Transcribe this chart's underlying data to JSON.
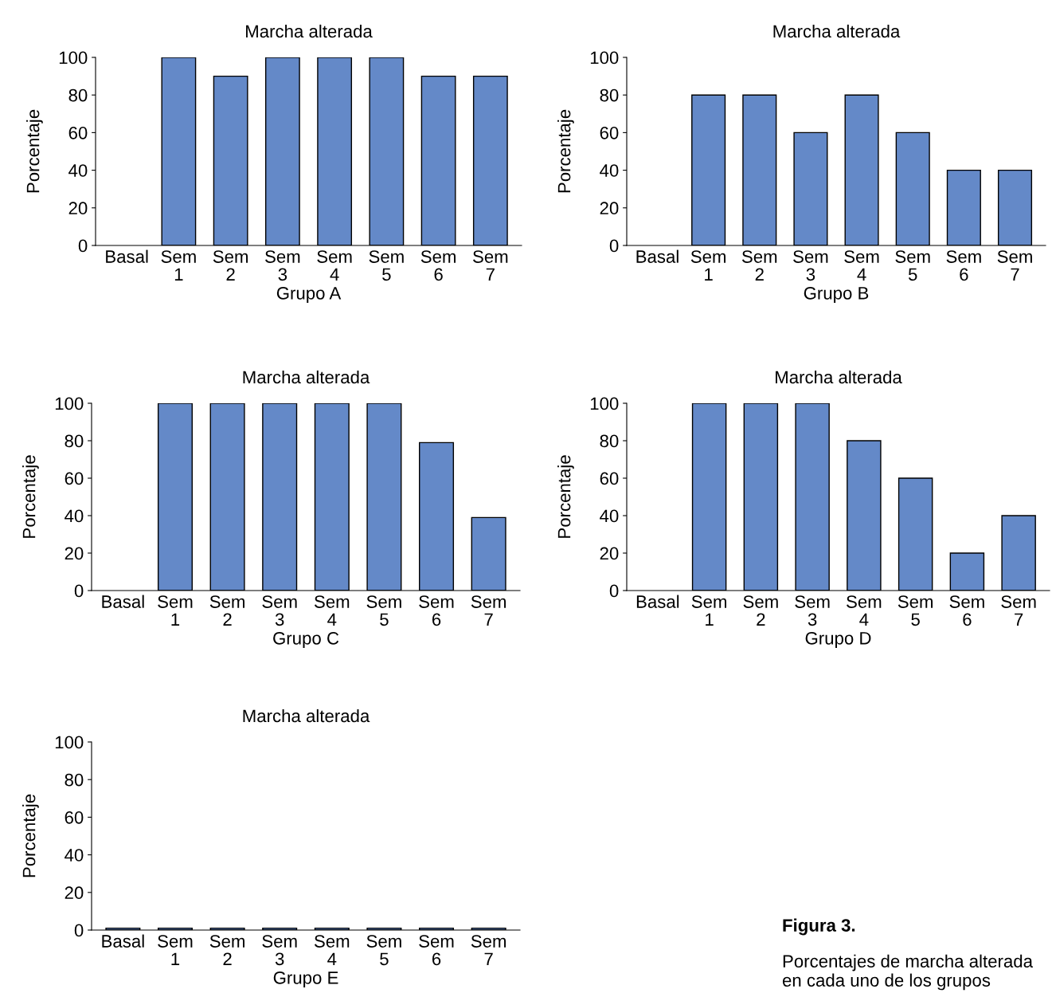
{
  "chart_data": [
    {
      "type": "bar",
      "title": "Marcha alterada",
      "xlabel": "Grupo A",
      "ylabel": "Porcentaje",
      "categories": [
        "Basal",
        "Sem\n1",
        "Sem\n2",
        "Sem\n3",
        "Sem\n4",
        "Sem\n5",
        "Sem\n6",
        "Sem\n7"
      ],
      "values": [
        0,
        100,
        90,
        100,
        100,
        100,
        90,
        90
      ],
      "color": "#6489c8",
      "ylim": [
        0,
        100
      ],
      "yticks": [
        0,
        20,
        40,
        60,
        80,
        100
      ],
      "grid": false,
      "legend": false
    },
    {
      "type": "bar",
      "title": "Marcha alterada",
      "xlabel": "Grupo B",
      "ylabel": "Porcentaje",
      "categories": [
        "Basal",
        "Sem\n1",
        "Sem\n2",
        "Sem\n3",
        "Sem\n4",
        "Sem\n5",
        "Sem\n6",
        "Sem\n7"
      ],
      "values": [
        0,
        80,
        80,
        60,
        80,
        60,
        40,
        40
      ],
      "color": "#6489c8",
      "ylim": [
        0,
        100
      ],
      "yticks": [
        0,
        20,
        40,
        60,
        80,
        100
      ],
      "grid": false,
      "legend": false
    },
    {
      "type": "bar",
      "title": "Marcha alterada",
      "xlabel": "Grupo C",
      "ylabel": "Porcentaje",
      "categories": [
        "Basal",
        "Sem\n1",
        "Sem\n2",
        "Sem\n3",
        "Sem\n4",
        "Sem\n5",
        "Sem\n6",
        "Sem\n7"
      ],
      "values": [
        0,
        100,
        100,
        100,
        100,
        100,
        79,
        39
      ],
      "color": "#6489c8",
      "ylim": [
        0,
        100
      ],
      "yticks": [
        0,
        20,
        40,
        60,
        80,
        100
      ],
      "grid": false,
      "legend": false
    },
    {
      "type": "bar",
      "title": "Marcha alterada",
      "xlabel": "Grupo D",
      "ylabel": "Porcentaje",
      "categories": [
        "Basal",
        "Sem\n1",
        "Sem\n2",
        "Sem\n3",
        "Sem\n4",
        "Sem\n5",
        "Sem\n6",
        "Sem\n7"
      ],
      "values": [
        0,
        100,
        100,
        100,
        80,
        60,
        20,
        40
      ],
      "color": "#6489c8",
      "ylim": [
        0,
        100
      ],
      "yticks": [
        0,
        20,
        40,
        60,
        80,
        100
      ],
      "grid": false,
      "legend": false
    },
    {
      "type": "bar",
      "title": "Marcha alterada",
      "xlabel": "Grupo E",
      "ylabel": "Porcentaje",
      "categories": [
        "Basal",
        "Sem\n1",
        "Sem\n2",
        "Sem\n3",
        "Sem\n4",
        "Sem\n5",
        "Sem\n6",
        "Sem\n7"
      ],
      "values": [
        1,
        1,
        1,
        1,
        1,
        1,
        1,
        1
      ],
      "color": "#6489c8",
      "ylim": [
        0,
        100
      ],
      "yticks": [
        0,
        20,
        40,
        60,
        80,
        100
      ],
      "grid": false,
      "legend": false,
      "annotations": [
        "Figura 3.",
        "Porcentajes de marcha alterada en cada uno de los grupos"
      ]
    }
  ]
}
